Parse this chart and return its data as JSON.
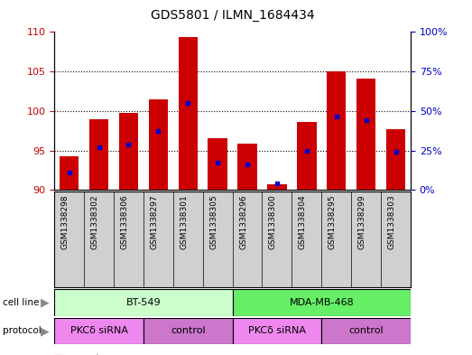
{
  "title": "GDS5801 / ILMN_1684434",
  "samples": [
    "GSM1338298",
    "GSM1338302",
    "GSM1338306",
    "GSM1338297",
    "GSM1338301",
    "GSM1338305",
    "GSM1338296",
    "GSM1338300",
    "GSM1338304",
    "GSM1338295",
    "GSM1338299",
    "GSM1338303"
  ],
  "red_values": [
    94.3,
    99.0,
    99.7,
    101.5,
    109.3,
    96.6,
    95.9,
    90.7,
    98.6,
    105.0,
    104.1,
    97.7
  ],
  "blue_values": [
    92.2,
    95.4,
    95.8,
    97.5,
    101.0,
    93.5,
    93.2,
    90.8,
    94.9,
    99.3,
    98.8,
    94.8
  ],
  "left_ylim": [
    90,
    110
  ],
  "left_yticks": [
    90,
    95,
    100,
    105,
    110
  ],
  "right_ylim": [
    0,
    100
  ],
  "right_yticks": [
    0,
    25,
    50,
    75,
    100
  ],
  "right_yticklabels": [
    "0%",
    "25%",
    "50%",
    "75%",
    "100%"
  ],
  "cell_line_groups": [
    {
      "label": "BT-549",
      "start": 0,
      "end": 5,
      "color": "#ccffcc"
    },
    {
      "label": "MDA-MB-468",
      "start": 6,
      "end": 11,
      "color": "#66ee66"
    }
  ],
  "protocol_groups": [
    {
      "label": "PKCδ siRNA",
      "start": 0,
      "end": 2,
      "color": "#ee88ee"
    },
    {
      "label": "control",
      "start": 3,
      "end": 5,
      "color": "#cc77cc"
    },
    {
      "label": "PKCδ siRNA",
      "start": 6,
      "end": 8,
      "color": "#ee88ee"
    },
    {
      "label": "control",
      "start": 9,
      "end": 11,
      "color": "#cc77cc"
    }
  ],
  "bar_color": "#cc0000",
  "dot_color": "#0000cc",
  "tick_label_color": "#cc0000",
  "right_axis_color": "#0000cc",
  "background_color": "#ffffff",
  "label_bg_color": "#d0d0d0",
  "grid_yticks": [
    95,
    100,
    105
  ]
}
